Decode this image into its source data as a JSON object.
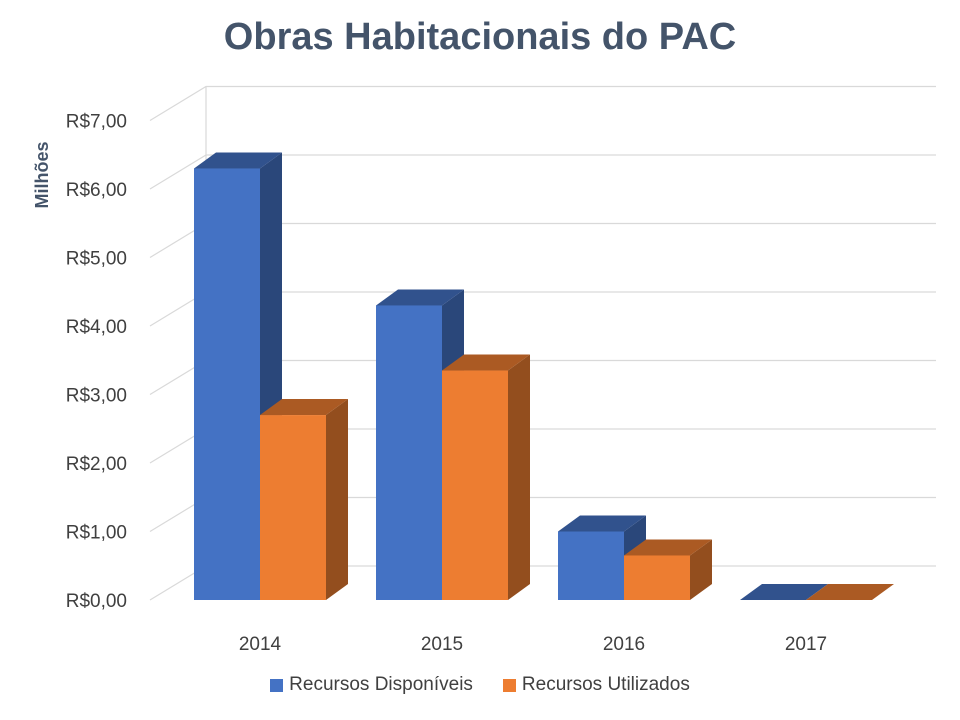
{
  "chart_data": {
    "type": "bar",
    "title": "Obras Habitacionais do PAC",
    "ylabel": "Milhões",
    "xlabel": "",
    "categories": [
      "2014",
      "2015",
      "2016",
      "2017"
    ],
    "series": [
      {
        "name": "Recursos Disponíveis",
        "values": [
          6.3,
          4.3,
          1.0,
          0.0
        ],
        "color": "#4472c4"
      },
      {
        "name": "Recursos Utilizados",
        "values": [
          2.7,
          3.35,
          0.65,
          0.0
        ],
        "color": "#ed7d31"
      }
    ],
    "yticks": [
      "R$0,00",
      "R$1,00",
      "R$2,00",
      "R$3,00",
      "R$4,00",
      "R$5,00",
      "R$6,00",
      "R$7,00"
    ],
    "ylim": [
      0,
      7
    ],
    "grid": true,
    "legend": "bottom",
    "style": "3d-column"
  }
}
